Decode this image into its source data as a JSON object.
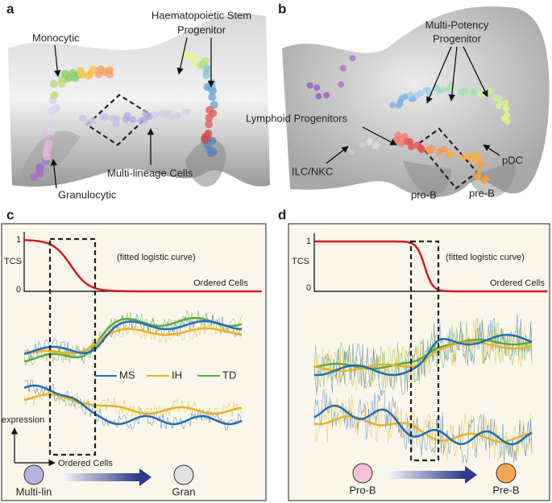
{
  "panel_a": {
    "label": "a",
    "hsp_line1": "Haematopoietic Stem",
    "hsp_line2": "Progenitor",
    "monocytic": "Monocytic",
    "multilineage": "Multi-lineage Cells",
    "granulocytic": "Granulocytic"
  },
  "panel_b": {
    "label": "b",
    "mpp_line1": "Multi-Potency",
    "mpp_line2": "Progenitor",
    "lymphoid": "Lymphoid Progenitors",
    "ilc": "ILC/NKC",
    "pdc": "pDC",
    "pro_b": "pro-B",
    "pre_b": "pre-B"
  },
  "panel_c": {
    "label": "c",
    "tcs_axis": "TCS",
    "tick_top": "1",
    "tick_bottom": "0",
    "curve_note": "(fitted logistic curve)",
    "x_axis": "Ordered Cells",
    "legend": [
      "MS",
      "IH",
      "TD"
    ],
    "y_axis_2": "expression",
    "x_axis_2": "Ordered Cells",
    "start_state": "Multi-lin",
    "end_state": "Gran"
  },
  "panel_d": {
    "label": "d",
    "tcs_axis": "TCS",
    "tick_top": "1",
    "tick_bottom": "0",
    "curve_note": "(fitted logistic curve)",
    "x_axis": "Ordered Cells",
    "start_state": "Pro-B",
    "end_state": "Pre-B"
  }
}
